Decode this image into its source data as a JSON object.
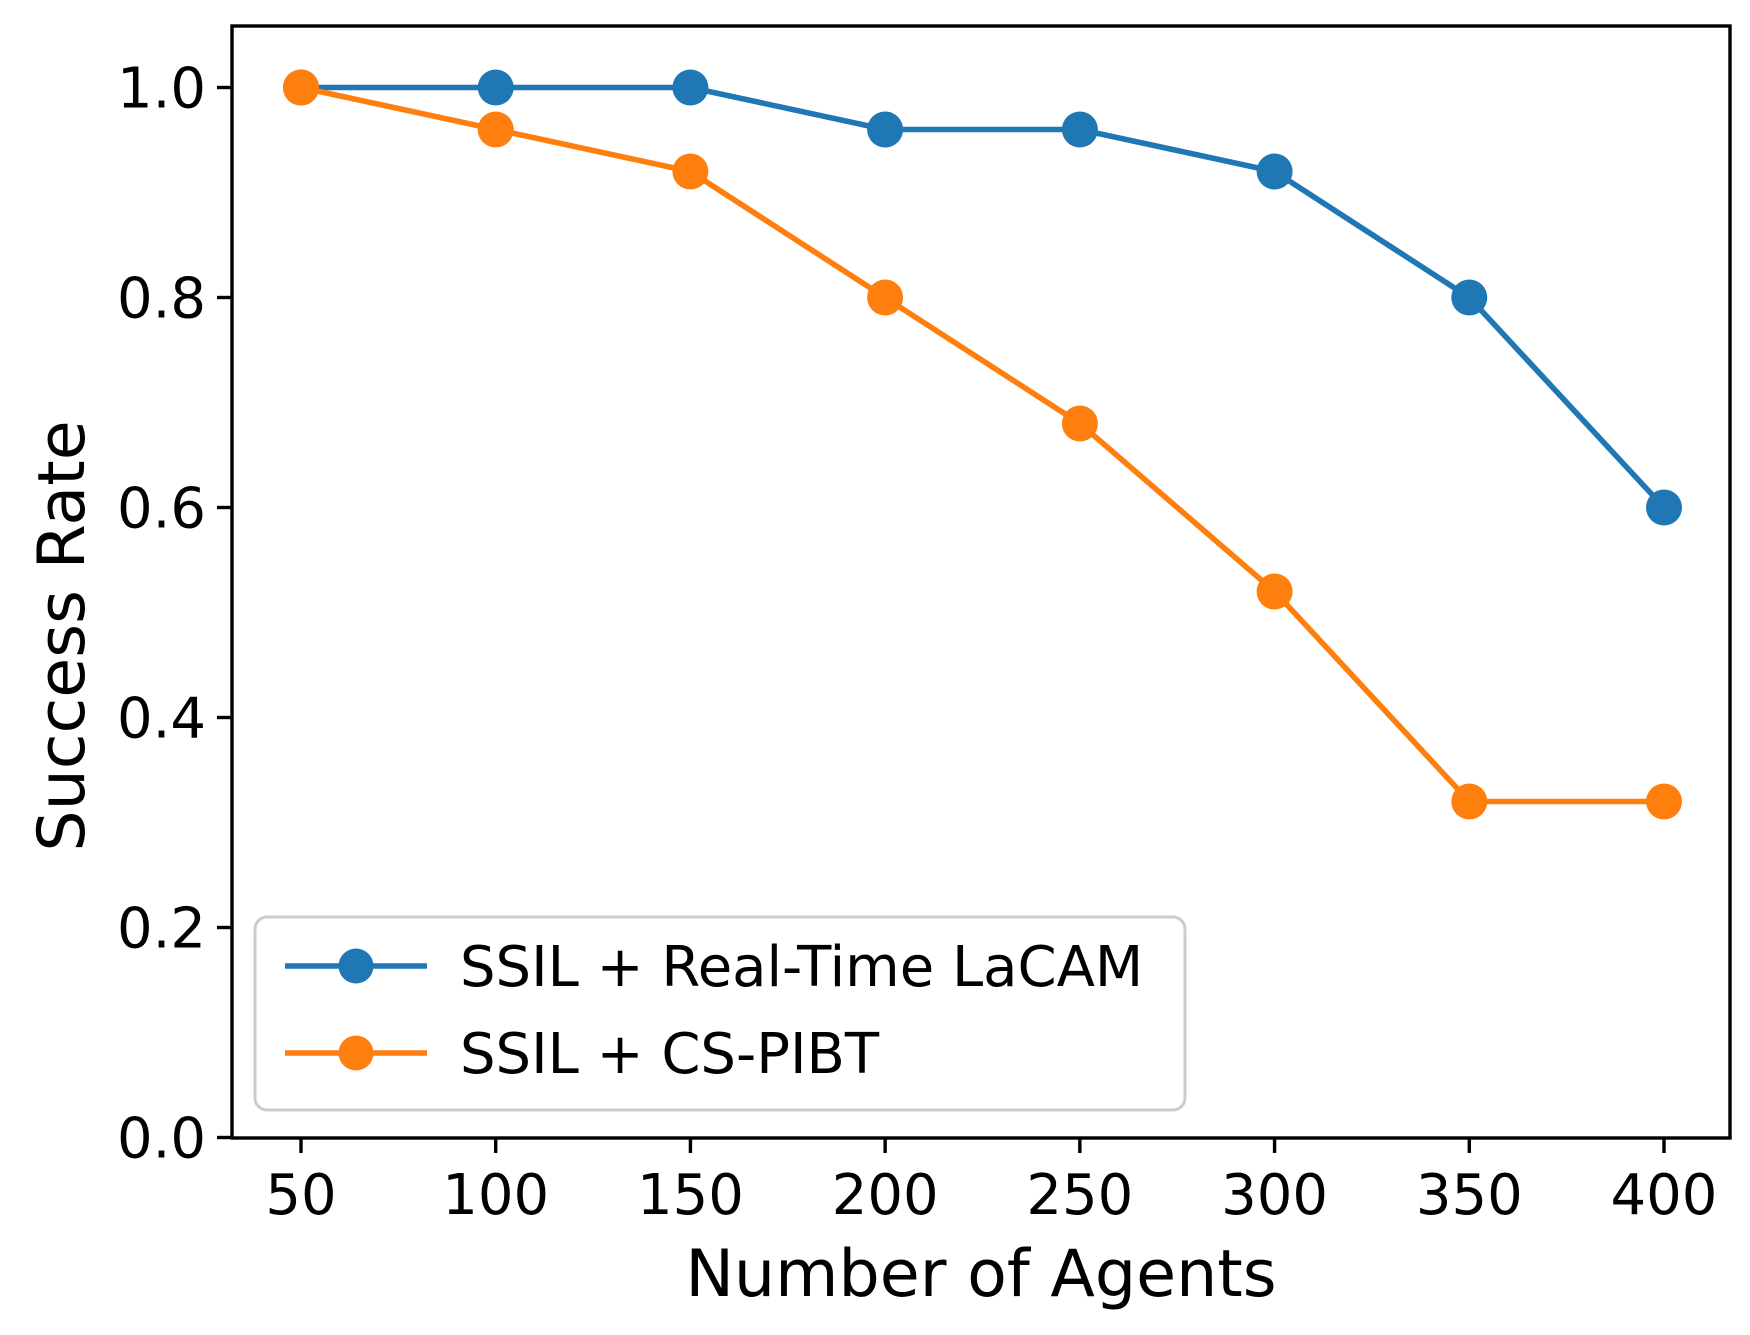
{
  "figure": {
    "background": "#ffffff",
    "frame_color": "#000000"
  },
  "chart_data": {
    "type": "line",
    "title": "",
    "xlabel": "Number of Agents",
    "ylabel": "Success Rate",
    "x": [
      50,
      100,
      150,
      200,
      250,
      300,
      350,
      400
    ],
    "series": [
      {
        "name": "SSIL + Real-Time LaCAM",
        "color": "#1f77b4",
        "marker": "o",
        "values": [
          1.0,
          1.0,
          1.0,
          0.96,
          0.96,
          0.92,
          0.8,
          0.6
        ]
      },
      {
        "name": "SSIL + CS-PIBT",
        "color": "#ff7f0e",
        "marker": "o",
        "values": [
          1.0,
          0.96,
          0.92,
          0.8,
          0.68,
          0.52,
          0.32,
          0.32
        ]
      }
    ],
    "xticks": [
      50,
      100,
      150,
      200,
      250,
      300,
      350,
      400
    ],
    "xtick_labels": [
      "50",
      "100",
      "150",
      "200",
      "250",
      "300",
      "350",
      "400"
    ],
    "yticks": [
      0.0,
      0.2,
      0.4,
      0.6,
      0.8,
      1.0
    ],
    "ytick_labels": [
      "0.0",
      "0.2",
      "0.4",
      "0.6",
      "0.8",
      "1.0"
    ],
    "xlim": [
      32.5,
      417.5
    ],
    "ylim": [
      0.0,
      1.06
    ],
    "grid": false,
    "legend": {
      "location": "lower left",
      "frame": true,
      "frame_color": "#cccccc",
      "entries": [
        "SSIL + Real-Time LaCAM",
        "SSIL + CS-PIBT"
      ]
    }
  }
}
